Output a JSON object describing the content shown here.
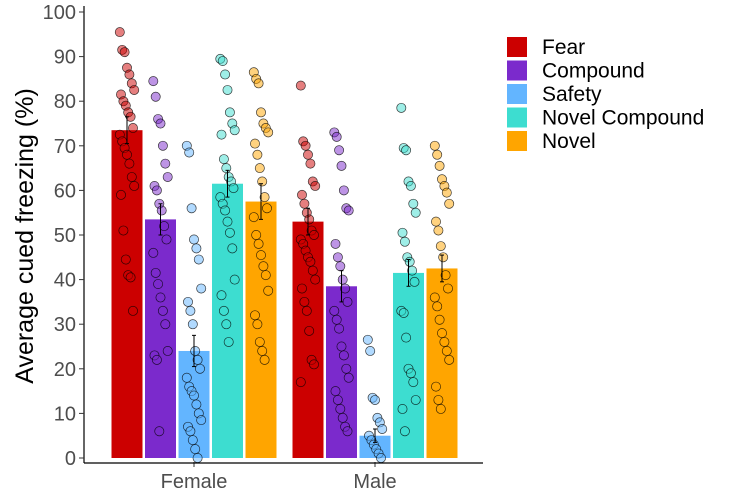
{
  "chart_data": {
    "type": "bar",
    "title": "",
    "xlabel": "",
    "ylabel": "Average cued freezing (%)",
    "ylim": [
      0,
      100
    ],
    "yticks": [
      0,
      10,
      20,
      30,
      40,
      50,
      60,
      70,
      80,
      90,
      100
    ],
    "categories": [
      "Female",
      "Male"
    ],
    "grid": false,
    "legend_position": "right",
    "series": [
      {
        "name": "Fear",
        "color": "#CC0000",
        "values": [
          73.5,
          53
        ],
        "errors": [
          3,
          3
        ],
        "points": [
          [
            95.5,
            91.5,
            91,
            87.5,
            86,
            84,
            82.5,
            81.5,
            80,
            79,
            77.5,
            76.5,
            74,
            72.5,
            71,
            69.5,
            68,
            66,
            63,
            61,
            59,
            51,
            44.5,
            41,
            40.5,
            33
          ],
          [
            83.5,
            71,
            70,
            68,
            66,
            62,
            61,
            59,
            57,
            55,
            53.5,
            51,
            50,
            49,
            48,
            46.5,
            45,
            44,
            42,
            40,
            38,
            35,
            33,
            28.5,
            22,
            21,
            17
          ]
        ]
      },
      {
        "name": "Compound",
        "color": "#7B2ACC",
        "values": [
          53.5,
          38.5
        ],
        "errors": [
          3.5,
          3.5
        ],
        "points": [
          [
            84.5,
            81,
            76,
            75,
            70,
            66,
            63,
            61,
            60,
            57,
            55.5,
            52,
            49,
            46,
            41.5,
            39,
            36,
            33,
            30,
            24,
            23,
            22,
            6
          ],
          [
            73,
            72,
            69,
            65.5,
            60,
            56,
            55.5,
            48,
            45,
            43,
            40,
            38,
            35,
            33,
            31,
            29,
            25,
            23,
            20,
            18,
            15,
            13,
            11,
            9,
            7,
            6
          ]
        ]
      },
      {
        "name": "Safety",
        "color": "#63B5FF",
        "values": [
          24,
          5
        ],
        "errors": [
          3.5,
          1.5
        ],
        "points": [
          [
            70,
            68.5,
            56,
            49,
            47,
            44.5,
            38,
            35,
            33,
            30,
            24,
            22,
            20,
            18,
            16,
            15,
            14,
            12,
            10,
            8.5,
            7,
            6,
            4,
            2,
            0
          ],
          [
            26.5,
            24,
            13.5,
            13,
            9,
            8,
            6.5,
            5,
            4,
            3,
            2,
            1,
            0
          ]
        ]
      },
      {
        "name": "Novel Compound",
        "color": "#3DDDD0",
        "values": [
          61.5,
          41.5
        ],
        "errors": [
          3,
          3
        ],
        "points": [
          [
            89.5,
            89,
            86,
            82.5,
            77.5,
            75,
            73.5,
            72.5,
            67,
            65,
            63,
            62,
            60.5,
            58.5,
            57,
            55.5,
            53,
            50.5,
            47,
            40,
            36.5,
            33,
            30,
            26
          ],
          [
            78.5,
            69.5,
            69,
            62,
            61,
            57,
            55,
            50.5,
            48.5,
            45,
            44,
            42,
            39.5,
            33,
            32.5,
            27,
            20,
            19,
            17,
            13,
            11,
            6
          ]
        ]
      },
      {
        "name": "Novel",
        "color": "#FFA500",
        "values": [
          57.5,
          42.5
        ],
        "errors": [
          4,
          3
        ],
        "points": [
          [
            86.5,
            85,
            84,
            77.5,
            75,
            74,
            73,
            70.5,
            68,
            65,
            62,
            58.5,
            56,
            54,
            50,
            48,
            45.5,
            43,
            41,
            37.5,
            32,
            30,
            26,
            24,
            22
          ],
          [
            70,
            68,
            65.5,
            62.5,
            61,
            59.5,
            57,
            53,
            51,
            47.5,
            45,
            41,
            38,
            36,
            34,
            31,
            28,
            26,
            24,
            22,
            16,
            13,
            11
          ]
        ]
      }
    ]
  }
}
